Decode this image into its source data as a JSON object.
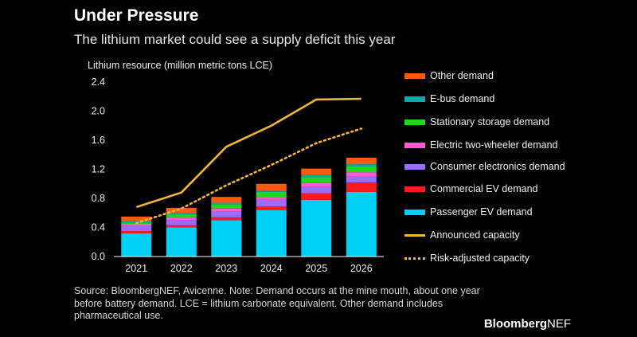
{
  "header": {
    "title": "Under Pressure",
    "subtitle": "The lithium market could see a supply deficit this year"
  },
  "footer": {
    "source": "Source: BloombergNEF, Avicenne. Note: Demand occurs at the mine mouth, about one year before battery demand. LCE = lithium carbonate equivalent. Other demand includes pharmaceutical use.",
    "brand_bold": "Bloomberg",
    "brand_rest": "NEF"
  },
  "chart_data": {
    "type": "bar",
    "stacked": true,
    "title": "Under Pressure",
    "subtitle": "The lithium market could see a supply deficit this year",
    "ylabel": "Lithium resource (million metric tons LCE)",
    "xlabel": "",
    "ylim": [
      0,
      2.4
    ],
    "yticks": [
      "0.0",
      "0.4",
      "0.8",
      "1.2",
      "1.6",
      "2.0",
      "2.4"
    ],
    "categories": [
      "2021",
      "2022",
      "2023",
      "2024",
      "2025",
      "2026"
    ],
    "series": [
      {
        "name": "Passenger EV demand",
        "color": "#00d0f5",
        "values": [
          0.32,
          0.4,
          0.5,
          0.64,
          0.78,
          0.89
        ]
      },
      {
        "name": "Commercial EV demand",
        "color": "#ff1a1a",
        "values": [
          0.03,
          0.03,
          0.04,
          0.05,
          0.09,
          0.13
        ]
      },
      {
        "name": "Consumer electronics demand",
        "color": "#9a6cff",
        "values": [
          0.07,
          0.07,
          0.08,
          0.09,
          0.09,
          0.08
        ]
      },
      {
        "name": "Electric two-wheeler demand",
        "color": "#ff5bd1",
        "values": [
          0.03,
          0.04,
          0.04,
          0.04,
          0.05,
          0.06
        ]
      },
      {
        "name": "Stationary storage demand",
        "color": "#1ed81e",
        "values": [
          0.02,
          0.04,
          0.06,
          0.07,
          0.08,
          0.08
        ]
      },
      {
        "name": "E-bus demand",
        "color": "#12a8a4",
        "values": [
          0.02,
          0.02,
          0.02,
          0.02,
          0.03,
          0.03
        ]
      },
      {
        "name": "Other demand",
        "color": "#ff5a10",
        "values": [
          0.06,
          0.07,
          0.08,
          0.09,
          0.09,
          0.09
        ]
      }
    ],
    "lines": [
      {
        "name": "Announced capacity",
        "style": "solid",
        "color": "#f5b731",
        "values": [
          0.68,
          0.88,
          1.51,
          1.8,
          2.16,
          2.17
        ]
      },
      {
        "name": "Risk-adjusted capacity",
        "style": "dotted",
        "color": "#f5b731",
        "values": [
          0.46,
          0.66,
          0.98,
          1.26,
          1.56,
          1.76
        ]
      }
    ],
    "legend_position": "right",
    "legend_order": [
      "Other demand",
      "E-bus demand",
      "Stationary storage demand",
      "Electric two-wheeler demand",
      "Consumer electronics demand",
      "Commercial EV demand",
      "Passenger EV demand",
      "Announced capacity",
      "Risk-adjusted capacity"
    ]
  }
}
